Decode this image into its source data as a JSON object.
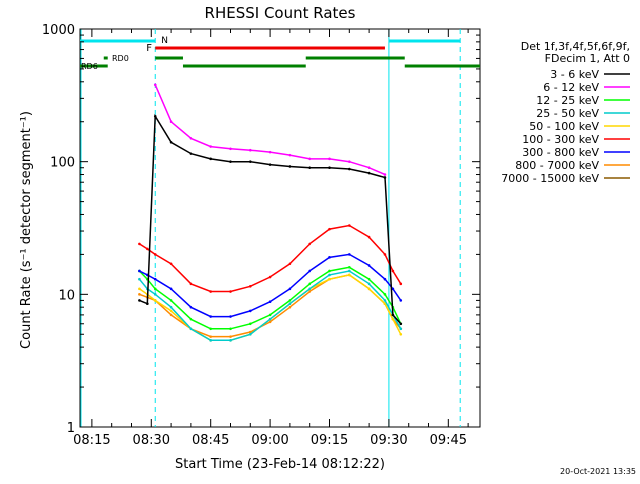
{
  "chart_data": {
    "type": "line",
    "title": "RHESSI Count Rates",
    "xlabel": "Start Time (23-Feb-14 08:12:22)",
    "ylabel": "Count Rate (s⁻¹ detector segment⁻¹)",
    "y_scale": "log",
    "ylim": [
      1,
      1000
    ],
    "xlim": [
      "08:12",
      "09:53"
    ],
    "x_ticks": [
      "08:15",
      "08:30",
      "08:45",
      "09:00",
      "09:15",
      "09:30",
      "09:45"
    ],
    "y_ticks": [
      "1",
      "10",
      "100",
      "1000"
    ],
    "legend_header": [
      "Det 1f,3f,4f,5f,6f,9f,",
      "FDecim 1, Att 0"
    ],
    "legend_position": "right",
    "footer_timestamp": "20-Oct-2021 13:35",
    "annotations": {
      "night_label": "N",
      "flare_label": "F",
      "saa_labels": [
        "RD0",
        "RD6"
      ]
    },
    "colors": {
      "night": "#00e5ee",
      "flare": "#ee0000",
      "decimation": "#008000",
      "axes": "#000000"
    },
    "x": [
      "08:27",
      "08:29",
      "08:31",
      "08:35",
      "08:40",
      "08:45",
      "08:50",
      "08:55",
      "09:00",
      "09:05",
      "09:10",
      "09:15",
      "09:20",
      "09:25",
      "09:29",
      "09:31",
      "09:33"
    ],
    "series": [
      {
        "name": "3 - 6 keV",
        "color": "#000000",
        "values": [
          9,
          8.5,
          220,
          140,
          115,
          105,
          100,
          100,
          95,
          92,
          90,
          90,
          88,
          82,
          76,
          7,
          6
        ]
      },
      {
        "name": "6 - 12 keV",
        "color": "#ff00ff",
        "values": [
          null,
          null,
          380,
          200,
          150,
          130,
          125,
          122,
          118,
          112,
          105,
          105,
          100,
          90,
          80,
          null,
          null
        ]
      },
      {
        "name": "12 - 25 keV",
        "color": "#00ff00",
        "values": [
          15,
          13,
          11,
          9,
          6.5,
          5.5,
          5.5,
          6,
          7,
          9,
          12,
          15,
          16,
          13,
          10,
          8,
          6
        ]
      },
      {
        "name": "25 - 50 keV",
        "color": "#00cccc",
        "values": [
          13,
          11,
          10,
          8,
          5.5,
          4.5,
          4.5,
          5,
          6.5,
          8.5,
          11,
          14,
          15,
          12,
          9,
          7,
          5.5
        ]
      },
      {
        "name": "50 - 100 keV",
        "color": "#ffd700",
        "values": [
          11,
          10,
          9,
          7.5,
          5.5,
          4.5,
          4.5,
          5,
          6.5,
          8.5,
          11,
          13,
          14,
          11,
          8.5,
          6.5,
          5
        ]
      },
      {
        "name": "100 - 300 keV",
        "color": "#ff0000",
        "values": [
          24,
          22,
          20,
          17,
          12,
          10.5,
          10.5,
          11.5,
          13.5,
          17,
          24,
          31,
          33,
          27,
          20,
          15,
          12
        ]
      },
      {
        "name": "300 - 800 keV",
        "color": "#0000ff",
        "values": [
          15,
          14,
          13,
          11,
          8,
          6.8,
          6.8,
          7.5,
          8.8,
          11,
          15,
          19,
          20,
          16.5,
          13,
          11,
          9
        ]
      },
      {
        "name": "800 - 7000 keV",
        "color": "#ff8c00",
        "values": [
          10,
          9.5,
          9,
          7,
          5.5,
          4.8,
          4.8,
          5.2,
          6.2,
          8,
          10.5,
          13,
          14,
          11,
          8.5,
          6.5,
          5.5
        ]
      },
      {
        "name": "7000 - 15000 keV",
        "color": "#8b5a00",
        "values": [
          null,
          null,
          null,
          null,
          null,
          null,
          null,
          null,
          null,
          null,
          null,
          null,
          null,
          null,
          null,
          null,
          null
        ]
      }
    ],
    "intervals": {
      "night": [
        [
          "08:12",
          "08:31"
        ],
        [
          "09:30",
          "09:48"
        ]
      ],
      "flare": [
        [
          "08:31",
          "09:29"
        ]
      ],
      "decimation_rows": [
        [
          [
            "08:18",
            "08:19"
          ],
          [
            "08:31",
            "08:38"
          ],
          [
            "09:09",
            "09:34"
          ]
        ],
        [
          [
            "08:12",
            "08:19"
          ],
          [
            "08:38",
            "09:09"
          ],
          [
            "09:34",
            "09:53"
          ]
        ]
      ]
    },
    "grid": false
  }
}
